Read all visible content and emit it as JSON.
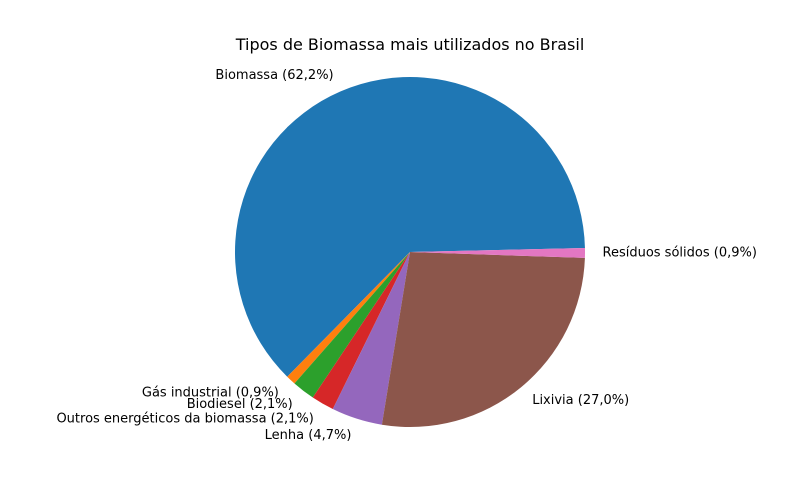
{
  "chart_data": {
    "type": "pie",
    "title": "Tipos de Biomassa mais utilizados no Brasil",
    "start_angle_deg": 1.3,
    "direction": "counterclockwise",
    "slices": [
      {
        "label": "Biomassa (62,2%)",
        "value": 62.2,
        "color": "#1f77b4"
      },
      {
        "label": "Gás industrial (0,9%)",
        "value": 0.9,
        "color": "#ff7f0e"
      },
      {
        "label": "Biodiesel (2,1%)",
        "value": 2.1,
        "color": "#2ca02c"
      },
      {
        "label": "Outros energéticos da biomassa (2,1%)",
        "value": 2.1,
        "color": "#d62728"
      },
      {
        "label": "Lenha (4,7%)",
        "value": 4.7,
        "color": "#9467bd"
      },
      {
        "label": "Lixivia (27,0%)",
        "value": 27.0,
        "color": "#8c564b"
      },
      {
        "label": "Resíduos sólidos (0,9%)",
        "value": 0.9,
        "color": "#e377c2"
      }
    ]
  }
}
